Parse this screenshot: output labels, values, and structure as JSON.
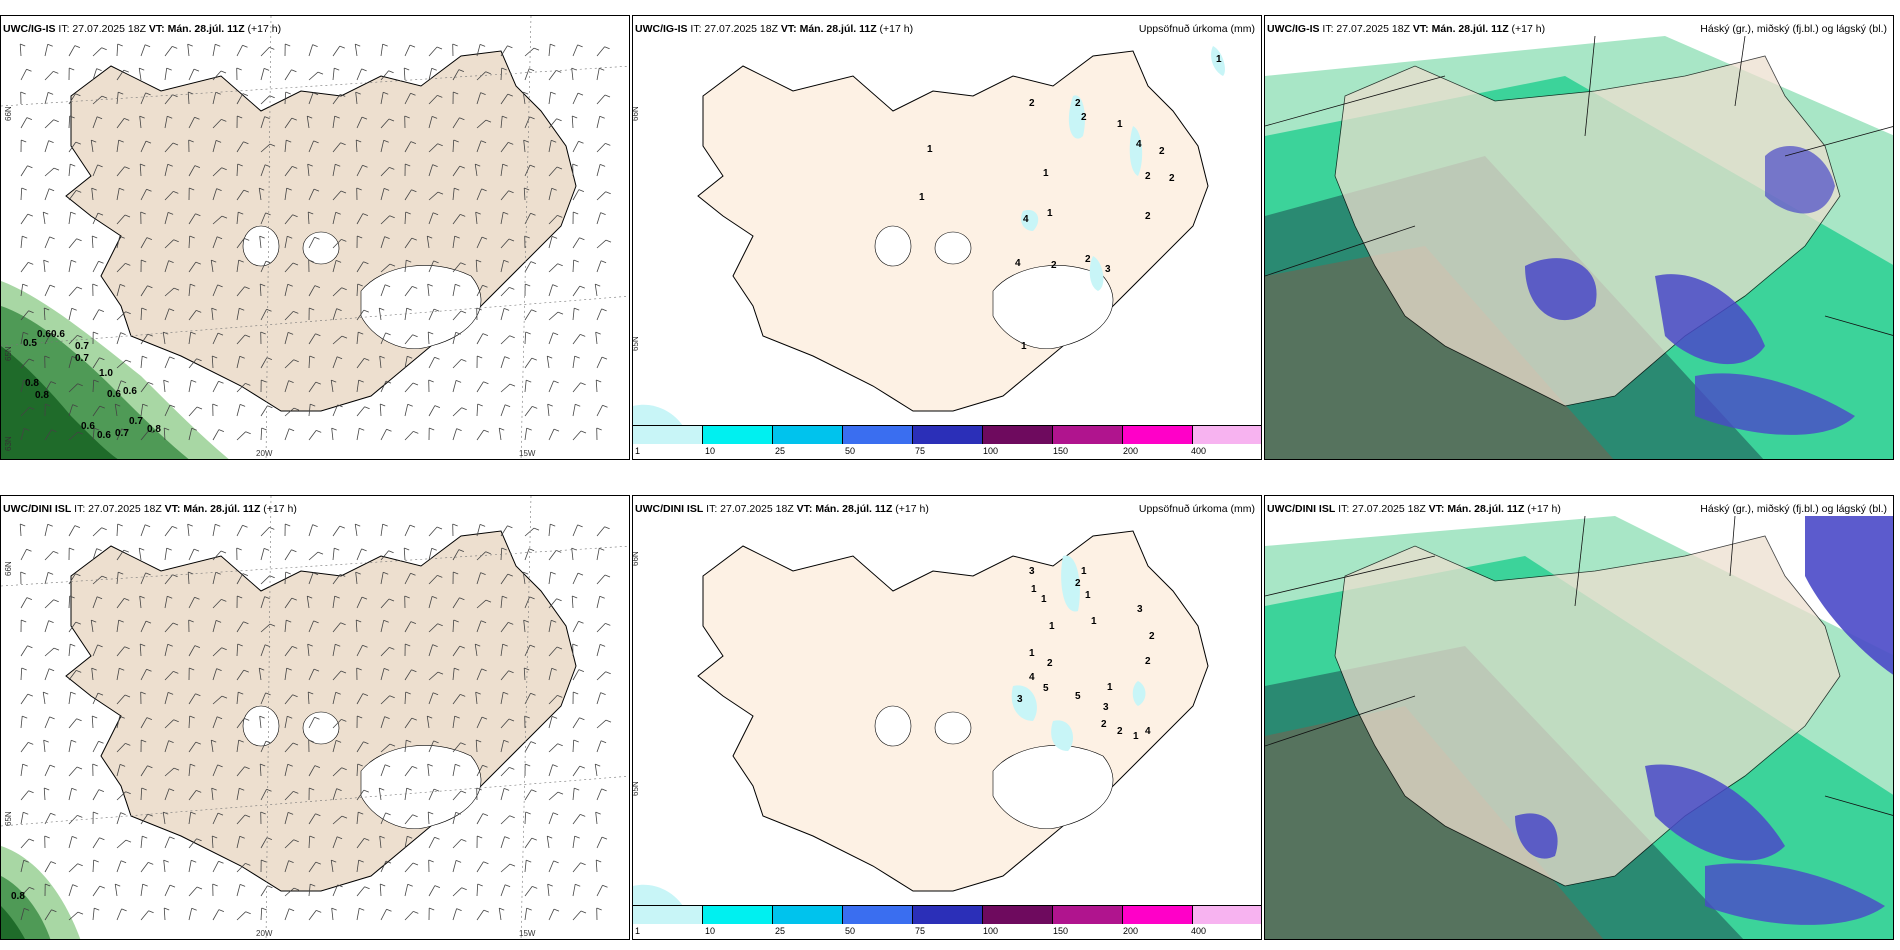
{
  "panels": [
    {
      "model": "UWC/IG-IS",
      "it": "IT: 27.07.2025 18Z",
      "vt_label": "VT:",
      "vt": "Mán. 28.júl. 11Z",
      "lead": "(+17 h)",
      "right_label": "",
      "lat_labels": [
        "66N",
        "65N",
        "63N"
      ],
      "lon_labels": [
        "20W",
        "15W"
      ],
      "wind_values": [
        "0.6",
        "0.6",
        "0.5",
        "0.7",
        "0.7",
        "1.0",
        "0.8",
        "0.8",
        "0.6",
        "0.6",
        "0.6",
        "0.7",
        "0.6",
        "0.7",
        "0.8"
      ]
    },
    {
      "model": "UWC/IG-IS",
      "it": "IT: 27.07.2025 18Z",
      "vt_label": "VT:",
      "vt": "Mán. 28.júl. 11Z",
      "lead": "(+17 h)",
      "right_label": "Uppsöfnuð úrkoma (mm)",
      "lat_labels": [
        "66N",
        "65N"
      ],
      "lon_labels": [],
      "precip_values": [
        "1",
        "2",
        "2",
        "2",
        "1",
        "4",
        "2",
        "1",
        "1",
        "2",
        "2",
        "1",
        "4",
        "1",
        "2",
        "4",
        "2",
        "3",
        "2",
        "1"
      ]
    },
    {
      "model": "UWC/IG-IS",
      "it": "IT: 27.07.2025 18Z",
      "vt_label": "VT:",
      "vt": "Mán. 28.júl. 11Z",
      "lead": "(+17 h)",
      "right_label": "Háský (gr.), miðský (fj.bl.) og lágský (bl.)"
    },
    {
      "model": "UWC/DINI ISL",
      "it": "IT: 27.07.2025 18Z",
      "vt_label": "VT:",
      "vt": "Mán. 28.júl. 11Z",
      "lead": "(+17 h)",
      "right_label": "",
      "lat_labels": [
        "66N",
        "65N"
      ],
      "lon_labels": [
        "20W",
        "15W"
      ],
      "wind_values": [
        "0.8"
      ]
    },
    {
      "model": "UWC/DINI ISL",
      "it": "IT: 27.07.2025 18Z",
      "vt_label": "VT:",
      "vt": "Mán. 28.júl. 11Z",
      "lead": "(+17 h)",
      "right_label": "Uppsöfnuð úrkoma (mm)",
      "lat_labels": [
        "66N",
        "65N"
      ],
      "lon_labels": [],
      "precip_values": [
        "3",
        "1",
        "2",
        "1",
        "1",
        "1",
        "3",
        "1",
        "1",
        "2",
        "2",
        "1",
        "2",
        "4",
        "5",
        "3",
        "5",
        "3",
        "1",
        "2",
        "1",
        "4",
        "2"
      ]
    },
    {
      "model": "UWC/DINI ISL",
      "it": "IT: 27.07.2025 18Z",
      "vt_label": "VT:",
      "vt": "Mán. 28.júl. 11Z",
      "lead": "(+17 h)",
      "right_label": "Háský (gr.), miðský (fj.bl.) og lágský (bl.)"
    }
  ],
  "colorbar": {
    "colors": [
      "#c8f5f7",
      "#00f0f0",
      "#00c3ed",
      "#3a6ef0",
      "#2b2fb8",
      "#6e0a5e",
      "#b0148e",
      "#ff00c8",
      "#f7b3f0"
    ],
    "labels": [
      "1",
      "10",
      "25",
      "50",
      "75",
      "100",
      "150",
      "200",
      "400"
    ]
  },
  "colors": {
    "land": "#eddfcf",
    "land_precip": "#fdf1e4",
    "green_dark": "#1f6b2a",
    "green_mid": "#4f9a56",
    "green_light": "#a8d7a4",
    "cloud_high": "#3cd39a",
    "cloud_mid": "#2a8a72",
    "cloud_low": "#4a49c8"
  }
}
